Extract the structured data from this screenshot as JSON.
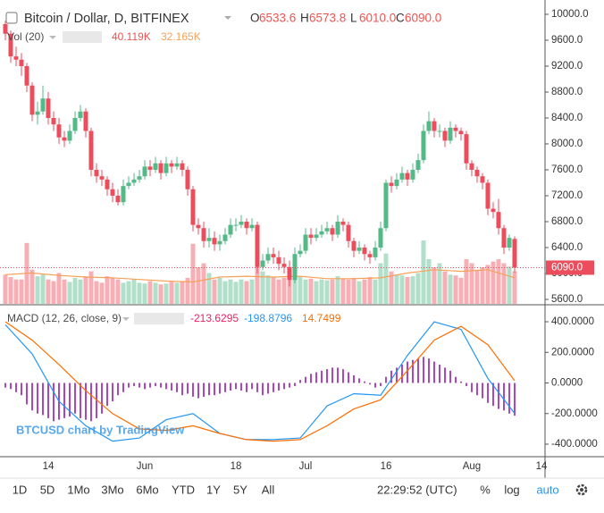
{
  "chart_data": {
    "type": "candlestick",
    "title": "Bitcoin / Dollar, D, BITFINEX",
    "ohlc_letters": [
      "O",
      "H",
      "L",
      "C"
    ],
    "last_labels": [
      "6533.6",
      "6573.8",
      "6010.0",
      "6090.0"
    ],
    "up_color": "#53b987",
    "down_color": "#eb4d5c",
    "xlim": [
      -1,
      100.67
    ],
    "xticks": [
      {
        "value": 8,
        "label": "14"
      },
      {
        "value": 26,
        "label": "Jun"
      },
      {
        "value": 43,
        "label": "18"
      },
      {
        "value": 56,
        "label": "Jul"
      },
      {
        "value": 71,
        "label": "16"
      },
      {
        "value": 87,
        "label": "Aug"
      },
      {
        "value": 100,
        "label": "14"
      }
    ],
    "ylim": [
      5600,
      10000
    ],
    "yticks": [
      {
        "value": 5600,
        "label": "5600.0"
      },
      {
        "value": 6000,
        "label": "6000.0"
      },
      {
        "value": 6400,
        "label": "6400.0"
      },
      {
        "value": 6800,
        "label": "6800.0"
      },
      {
        "value": 7200,
        "label": "7200.0"
      },
      {
        "value": 7600,
        "label": "7600.0"
      },
      {
        "value": 8000,
        "label": "8000.0"
      },
      {
        "value": 8400,
        "label": "8400.0"
      },
      {
        "value": 8800,
        "label": "8800.0"
      },
      {
        "value": 9200,
        "label": "9200.0"
      },
      {
        "value": 9600,
        "label": "9600.0"
      },
      {
        "value": 10000,
        "label": "10000.0"
      }
    ],
    "grid": true,
    "ohlc": [
      [
        9850,
        9900,
        9600,
        9700
      ],
      [
        9700,
        9750,
        9250,
        9350
      ],
      [
        9350,
        9500,
        9200,
        9300
      ],
      [
        9300,
        9400,
        9050,
        9200
      ],
      [
        9200,
        9250,
        8800,
        8900
      ],
      [
        8900,
        8950,
        8350,
        8450
      ],
      [
        8450,
        8650,
        8300,
        8500
      ],
      [
        8500,
        8900,
        8450,
        8700
      ],
      [
        8700,
        8800,
        8300,
        8400
      ],
      [
        8400,
        8500,
        8200,
        8300
      ],
      [
        8300,
        8400,
        8000,
        8100
      ],
      [
        8100,
        8200,
        7950,
        8050
      ],
      [
        8050,
        8300,
        8000,
        8200
      ],
      [
        8200,
        8500,
        8150,
        8400
      ],
      [
        8400,
        8600,
        8350,
        8500
      ],
      [
        8500,
        8550,
        8100,
        8200
      ],
      [
        8200,
        8250,
        7500,
        7600
      ],
      [
        7600,
        7700,
        7400,
        7500
      ],
      [
        7500,
        7600,
        7350,
        7450
      ],
      [
        7450,
        7500,
        7200,
        7300
      ],
      [
        7300,
        7400,
        7100,
        7200
      ],
      [
        7200,
        7300,
        7050,
        7100
      ],
      [
        7100,
        7450,
        7050,
        7350
      ],
      [
        7350,
        7500,
        7300,
        7400
      ],
      [
        7400,
        7550,
        7350,
        7450
      ],
      [
        7450,
        7600,
        7400,
        7500
      ],
      [
        7500,
        7750,
        7450,
        7650
      ],
      [
        7650,
        7750,
        7500,
        7600
      ],
      [
        7600,
        7800,
        7550,
        7700
      ],
      [
        7700,
        7750,
        7450,
        7550
      ],
      [
        7550,
        7800,
        7500,
        7700
      ],
      [
        7700,
        7750,
        7550,
        7650
      ],
      [
        7650,
        7800,
        7600,
        7700
      ],
      [
        7700,
        7750,
        7500,
        7600
      ],
      [
        7600,
        7650,
        7200,
        7300
      ],
      [
        7300,
        7350,
        6650,
        6750
      ],
      [
        6750,
        6850,
        6600,
        6700
      ],
      [
        6700,
        6800,
        6400,
        6500
      ],
      [
        6500,
        6700,
        6400,
        6550
      ],
      [
        6550,
        6650,
        6350,
        6450
      ],
      [
        6450,
        6600,
        6350,
        6500
      ],
      [
        6500,
        6700,
        6450,
        6600
      ],
      [
        6600,
        6850,
        6550,
        6750
      ],
      [
        6750,
        6850,
        6650,
        6750
      ],
      [
        6750,
        6900,
        6700,
        6800
      ],
      [
        6800,
        6850,
        6600,
        6700
      ],
      [
        6700,
        6850,
        6650,
        6750
      ],
      [
        6750,
        6800,
        6000,
        6100
      ],
      [
        6100,
        6300,
        6050,
        6200
      ],
      [
        6200,
        6400,
        6150,
        6300
      ],
      [
        6300,
        6400,
        6150,
        6250
      ],
      [
        6250,
        6350,
        6050,
        6150
      ],
      [
        6150,
        6250,
        6000,
        6100
      ],
      [
        6100,
        6200,
        5800,
        5900
      ],
      [
        5900,
        6400,
        5850,
        6300
      ],
      [
        6300,
        6450,
        6250,
        6350
      ],
      [
        6350,
        6700,
        6300,
        6600
      ],
      [
        6600,
        6700,
        6450,
        6550
      ],
      [
        6550,
        6700,
        6500,
        6600
      ],
      [
        6600,
        6750,
        6550,
        6650
      ],
      [
        6650,
        6800,
        6600,
        6700
      ],
      [
        6700,
        6750,
        6500,
        6600
      ],
      [
        6600,
        6900,
        6550,
        6800
      ],
      [
        6800,
        6850,
        6650,
        6750
      ],
      [
        6750,
        6800,
        6400,
        6500
      ],
      [
        6500,
        6550,
        6250,
        6350
      ],
      [
        6350,
        6500,
        6300,
        6400
      ],
      [
        6400,
        6450,
        6200,
        6300
      ],
      [
        6300,
        6350,
        6150,
        6250
      ],
      [
        6250,
        6500,
        6200,
        6400
      ],
      [
        6400,
        6800,
        6350,
        6700
      ],
      [
        6700,
        7450,
        6650,
        7400
      ],
      [
        7400,
        7500,
        7250,
        7350
      ],
      [
        7350,
        7550,
        7300,
        7450
      ],
      [
        7450,
        7650,
        7400,
        7550
      ],
      [
        7550,
        7600,
        7350,
        7450
      ],
      [
        7450,
        7700,
        7400,
        7600
      ],
      [
        7600,
        7850,
        7550,
        7750
      ],
      [
        7750,
        8300,
        7700,
        8200
      ],
      [
        8200,
        8500,
        8150,
        8350
      ],
      [
        8350,
        8400,
        8100,
        8200
      ],
      [
        8200,
        8300,
        8100,
        8200
      ],
      [
        8200,
        8250,
        7950,
        8050
      ],
      [
        8050,
        8350,
        8000,
        8250
      ],
      [
        8250,
        8300,
        8100,
        8200
      ],
      [
        8200,
        8250,
        8050,
        8150
      ],
      [
        8150,
        8200,
        7600,
        7700
      ],
      [
        7700,
        7750,
        7500,
        7600
      ],
      [
        7600,
        7650,
        7400,
        7500
      ],
      [
        7500,
        7550,
        7300,
        7400
      ],
      [
        7400,
        7450,
        6900,
        7000
      ],
      [
        7000,
        7100,
        6850,
        6950
      ],
      [
        6950,
        7150,
        6600,
        6700
      ],
      [
        6700,
        6750,
        6300,
        6400
      ],
      [
        6400,
        6600,
        6350,
        6550
      ],
      [
        6533.6,
        6573.8,
        6010,
        6090
      ]
    ],
    "volume": {
      "title": "Vol (20)",
      "last_label": "40.119K",
      "ma_label": "32.165K",
      "ylim": [
        0,
        110000
      ],
      "ma_color": "#f7a156",
      "values": [
        36000,
        33000,
        30000,
        30000,
        75000,
        42000,
        34000,
        36000,
        30000,
        28000,
        38000,
        30000,
        27000,
        32000,
        30000,
        34000,
        40000,
        28000,
        26000,
        34000,
        32000,
        30000,
        26000,
        28000,
        30000,
        26000,
        25000,
        28000,
        26000,
        24000,
        25000,
        27000,
        26000,
        28000,
        32000,
        74000,
        45000,
        50000,
        38000,
        30000,
        32000,
        28000,
        30000,
        27000,
        30000,
        28000,
        30000,
        52000,
        40000,
        35000,
        33000,
        30000,
        32000,
        40000,
        35000,
        33000,
        30000,
        31000,
        28000,
        30000,
        29000,
        30000,
        34000,
        31000,
        30000,
        32000,
        28000,
        30000,
        33000,
        30000,
        50000,
        62000,
        40000,
        36000,
        35000,
        33000,
        34000,
        38000,
        78000,
        55000,
        45000,
        50000,
        40000,
        36000,
        35000,
        32000,
        55000,
        50000,
        42000,
        45000,
        48000,
        52000,
        55000,
        50000,
        46000,
        40119
      ],
      "ma_x": [
        0,
        5,
        10,
        15,
        20,
        25,
        30,
        35,
        40,
        45,
        50,
        55,
        60,
        65,
        70,
        75,
        80,
        85,
        90,
        95
      ],
      "ma": [
        36000,
        38000,
        35000,
        33000,
        32000,
        30000,
        28000,
        27000,
        33000,
        34000,
        33000,
        34000,
        31000,
        31000,
        32000,
        38000,
        42000,
        40000,
        42000,
        32165
      ]
    },
    "macd": {
      "title": "MACD (12, 26, close, 9)",
      "labels": [
        "-213.6295",
        "-198.8796",
        "14.7499"
      ],
      "hist_color": "#9c27b0",
      "macd_color": "#2196f3",
      "signal_color": "#ff6d00",
      "ylim": [
        -400,
        400
      ],
      "yticks": [
        {
          "value": -400,
          "label": "-400.0000"
        },
        {
          "value": -200,
          "label": "-200.0000"
        },
        {
          "value": 0,
          "label": "0.0000"
        },
        {
          "value": 200,
          "label": "200.0000"
        },
        {
          "value": 400,
          "label": "400.0000"
        }
      ],
      "x": [
        0,
        5,
        10,
        15,
        20,
        25,
        30,
        35,
        40,
        45,
        50,
        55,
        60,
        65,
        70,
        75,
        80,
        85,
        90,
        95
      ],
      "macd": [
        380,
        190,
        -120,
        -280,
        -380,
        -360,
        -240,
        -200,
        -330,
        -370,
        -370,
        -360,
        -150,
        -70,
        -80,
        180,
        400,
        350,
        30,
        -198.8796
      ],
      "signal": [
        400,
        280,
        120,
        -50,
        -200,
        -300,
        -310,
        -280,
        -330,
        -370,
        -380,
        -370,
        -280,
        -170,
        -110,
        80,
        280,
        370,
        250,
        14.7499
      ],
      "histogram": [
        -30,
        -40,
        -60,
        -80,
        -140,
        -180,
        -200,
        -210,
        -230,
        -250,
        -240,
        -230,
        -220,
        -200,
        -230,
        -240,
        -250,
        -230,
        -200,
        -150,
        -120,
        -80,
        -60,
        -30,
        -20,
        -30,
        -40,
        -30,
        -20,
        -30,
        -40,
        -50,
        -60,
        -80,
        -70,
        -90,
        -100,
        -90,
        -80,
        -80,
        -70,
        -60,
        -50,
        -40,
        -50,
        -60,
        -40,
        -60,
        -80,
        -70,
        -60,
        -50,
        -40,
        -30,
        -20,
        20,
        40,
        60,
        70,
        80,
        90,
        100,
        100,
        90,
        70,
        50,
        30,
        10,
        -10,
        -30,
        -20,
        40,
        80,
        100,
        120,
        140,
        150,
        160,
        170,
        160,
        140,
        120,
        100,
        80,
        40,
        10,
        -20,
        -60,
        -80,
        -100,
        -130,
        -150,
        -170,
        -180,
        -200,
        -213.6295
      ]
    },
    "watermark": "BTCUSD chart by TradingView"
  },
  "toolbar": {
    "ranges": [
      "1D",
      "5D",
      "1Mo",
      "3Mo",
      "6Mo",
      "YTD",
      "1Y",
      "5Y",
      "All"
    ],
    "time": "22:29:52 (UTC)",
    "percent": "%",
    "log": "log",
    "auto": "auto"
  }
}
